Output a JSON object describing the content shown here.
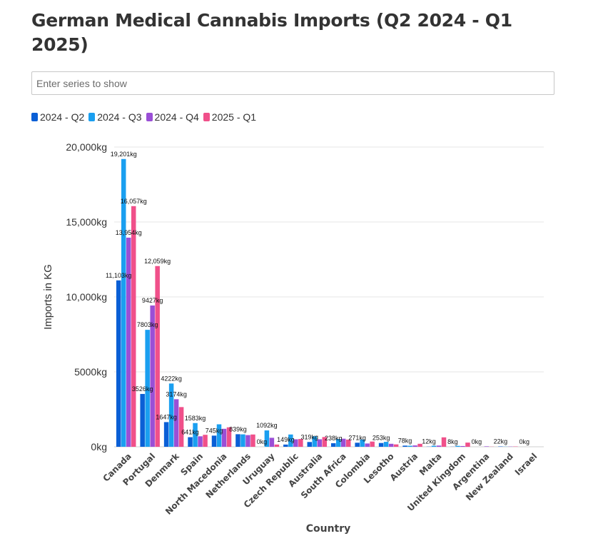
{
  "page": {
    "title": "German Medical Cannabis Imports (Q2 2024 - Q1 2025)",
    "search_placeholder": "Enter series to show"
  },
  "colors": {
    "2024 - Q2": "#0a5fd6",
    "2024 - Q3": "#1a9ff0",
    "2024 - Q4": "#9a4fd6",
    "2025 - Q1": "#f0508a"
  },
  "chart_data": {
    "type": "bar",
    "title": "German Medical Cannabis Imports (Q2 2024 - Q1 2025)",
    "xlabel": "Country",
    "ylabel": "Imports in KG",
    "ylim": [
      0,
      20000
    ],
    "yticks": [
      "0kg",
      "5000kg",
      "10,000kg",
      "15,000kg",
      "20,000kg"
    ],
    "ytick_values": [
      0,
      5000,
      10000,
      15000,
      20000
    ],
    "grid": true,
    "legend": "top-left",
    "categories": [
      "Canada",
      "Portugal",
      "Denmark",
      "Spain",
      "North Macedonia",
      "Netherlands",
      "Uruguay",
      "Czech Republic",
      "Australia",
      "South Africa",
      "Colombia",
      "Lesotho",
      "Austria",
      "Malta",
      "United Kingdom",
      "Argentina",
      "New Zealand",
      "Israel"
    ],
    "series": [
      {
        "name": "2024 - Q2",
        "values": [
          11103,
          3526,
          1647,
          641,
          745,
          839,
          0,
          149,
          319,
          238,
          271,
          253,
          78,
          12,
          8,
          0,
          22,
          0
        ]
      },
      {
        "name": "2024 - Q3",
        "values": [
          19201,
          7803,
          4222,
          1583,
          1500,
          830,
          1092,
          820,
          700,
          520,
          480,
          330,
          70,
          70,
          60,
          0,
          10,
          0
        ]
      },
      {
        "name": "2024 - Q4",
        "values": [
          13954,
          9427,
          3174,
          700,
          1200,
          780,
          600,
          500,
          500,
          540,
          220,
          200,
          90,
          80,
          50,
          30,
          15,
          0
        ]
      },
      {
        "name": "2025 - Q1",
        "values": [
          16057,
          12059,
          2650,
          800,
          1300,
          820,
          150,
          520,
          650,
          480,
          350,
          160,
          200,
          630,
          280,
          10,
          20,
          0
        ]
      }
    ],
    "labels": [
      {
        "category": "Canada",
        "series": "2024 - Q2",
        "text": "11,103kg"
      },
      {
        "category": "Canada",
        "series": "2024 - Q3",
        "text": "19,201kg"
      },
      {
        "category": "Canada",
        "series": "2024 - Q4",
        "text": "13,954kg"
      },
      {
        "category": "Canada",
        "series": "2025 - Q1",
        "text": "16,057kg"
      },
      {
        "category": "Portugal",
        "series": "2024 - Q2",
        "text": "3526kg"
      },
      {
        "category": "Portugal",
        "series": "2024 - Q3",
        "text": "7803kg"
      },
      {
        "category": "Portugal",
        "series": "2024 - Q4",
        "text": "9427kg"
      },
      {
        "category": "Portugal",
        "series": "2025 - Q1",
        "text": "12,059kg"
      },
      {
        "category": "Denmark",
        "series": "2024 - Q2",
        "text": "1647kg"
      },
      {
        "category": "Denmark",
        "series": "2024 - Q3",
        "text": "4222kg"
      },
      {
        "category": "Denmark",
        "series": "2024 - Q4",
        "text": "3174kg"
      },
      {
        "category": "Spain",
        "series": "2024 - Q2",
        "text": "641kg"
      },
      {
        "category": "Spain",
        "series": "2024 - Q3",
        "text": "1583kg"
      },
      {
        "category": "North Macedonia",
        "series": "2024 - Q2",
        "text": "745kg"
      },
      {
        "category": "Netherlands",
        "series": "2024 - Q2",
        "text": "839kg"
      },
      {
        "category": "Uruguay",
        "series": "2024 - Q2",
        "text": "0kg"
      },
      {
        "category": "Uruguay",
        "series": "2024 - Q3",
        "text": "1092kg"
      },
      {
        "category": "Czech Republic",
        "series": "2024 - Q2",
        "text": "149kg"
      },
      {
        "category": "Australia",
        "series": "2024 - Q2",
        "text": "319kg"
      },
      {
        "category": "South Africa",
        "series": "2024 - Q2",
        "text": "238kg"
      },
      {
        "category": "Colombia",
        "series": "2024 - Q2",
        "text": "271kg"
      },
      {
        "category": "Lesotho",
        "series": "2024 - Q2",
        "text": "253kg"
      },
      {
        "category": "Austria",
        "series": "2024 - Q2",
        "text": "78kg"
      },
      {
        "category": "Malta",
        "series": "2024 - Q2",
        "text": "12kg"
      },
      {
        "category": "United Kingdom",
        "series": "2024 - Q2",
        "text": "8kg"
      },
      {
        "category": "Argentina",
        "series": "2024 - Q2",
        "text": "0kg"
      },
      {
        "category": "New Zealand",
        "series": "2024 - Q2",
        "text": "22kg"
      },
      {
        "category": "Israel",
        "series": "2024 - Q2",
        "text": "0kg"
      }
    ]
  }
}
